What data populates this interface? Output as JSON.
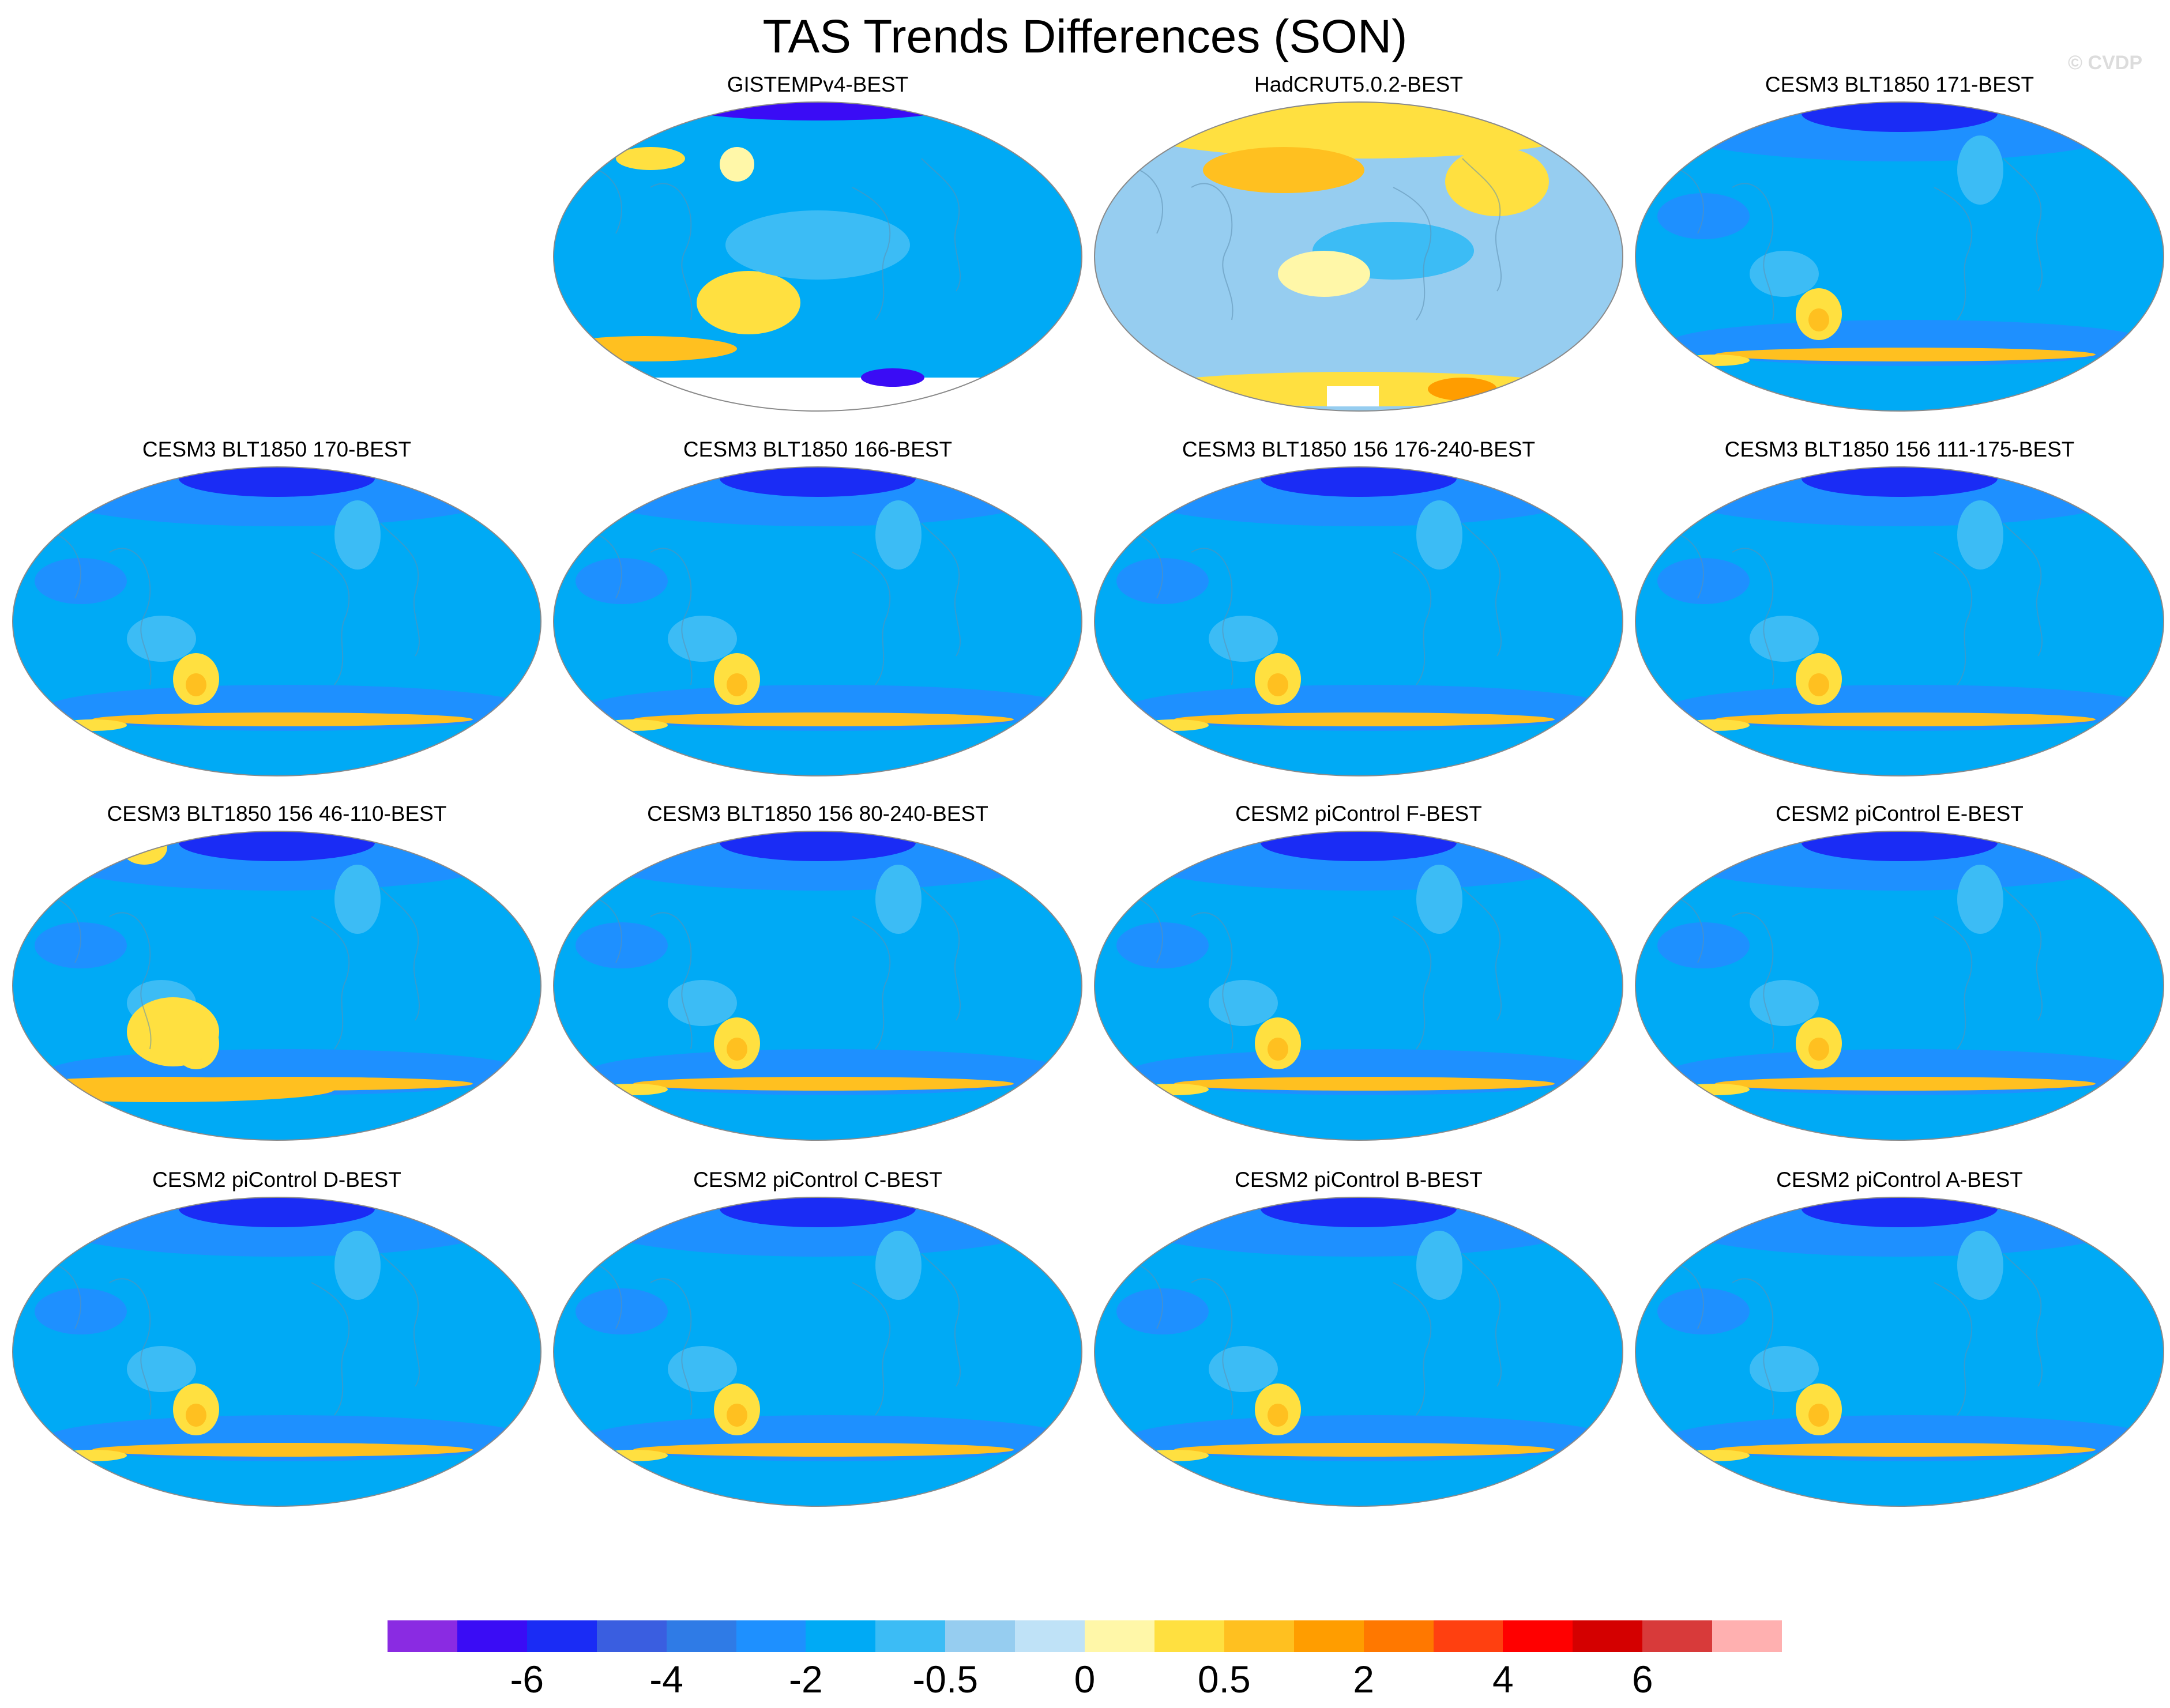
{
  "title": "TAS Trends Differences (SON)",
  "watermark": "© CVDP",
  "panels": [
    {
      "label": "GISTEMPv4-BEST",
      "style": "gistemp"
    },
    {
      "label": "HadCRUT5.0.2-BEST",
      "style": "hadcrut"
    },
    {
      "label": "CESM3 BLT1850 171-BEST",
      "style": "model"
    },
    {
      "label": "CESM3 BLT1850 170-BEST",
      "style": "model"
    },
    {
      "label": "CESM3 BLT1850 166-BEST",
      "style": "model"
    },
    {
      "label": "CESM3 BLT1850 156 176-240-BEST",
      "style": "model"
    },
    {
      "label": "CESM3 BLT1850 156 111-175-BEST",
      "style": "model"
    },
    {
      "label": "CESM3 BLT1850 156 46-110-BEST",
      "style": "model_warm"
    },
    {
      "label": "CESM3 BLT1850 156 80-240-BEST",
      "style": "model"
    },
    {
      "label": "CESM2 piControl F-BEST",
      "style": "model"
    },
    {
      "label": "CESM2 piControl E-BEST",
      "style": "model"
    },
    {
      "label": "CESM2 piControl D-BEST",
      "style": "model"
    },
    {
      "label": "CESM2 piControl C-BEST",
      "style": "model"
    },
    {
      "label": "CESM2 piControl B-BEST",
      "style": "model"
    },
    {
      "label": "CESM2 piControl A-BEST",
      "style": "model"
    }
  ],
  "colorbar": {
    "colors": [
      "#8a2be2",
      "#3a0cf5",
      "#1a2cf5",
      "#3a5ee0",
      "#2f7be6",
      "#1e90ff",
      "#00aaf5",
      "#3cbcf5",
      "#96cdf0",
      "#bfe2f7",
      "#fff7a8",
      "#ffe040",
      "#ffc020",
      "#ff9d00",
      "#ff7800",
      "#ff4010",
      "#ff0000",
      "#d40000",
      "#d83a3a",
      "#ffb0b0"
    ],
    "labels": [
      "-6",
      "-4",
      "-2",
      "-0.5",
      "0",
      "0.5",
      "2",
      "4",
      "6"
    ],
    "label_boundary_index": [
      2,
      4,
      6,
      8,
      10,
      12,
      14,
      16,
      18
    ]
  }
}
